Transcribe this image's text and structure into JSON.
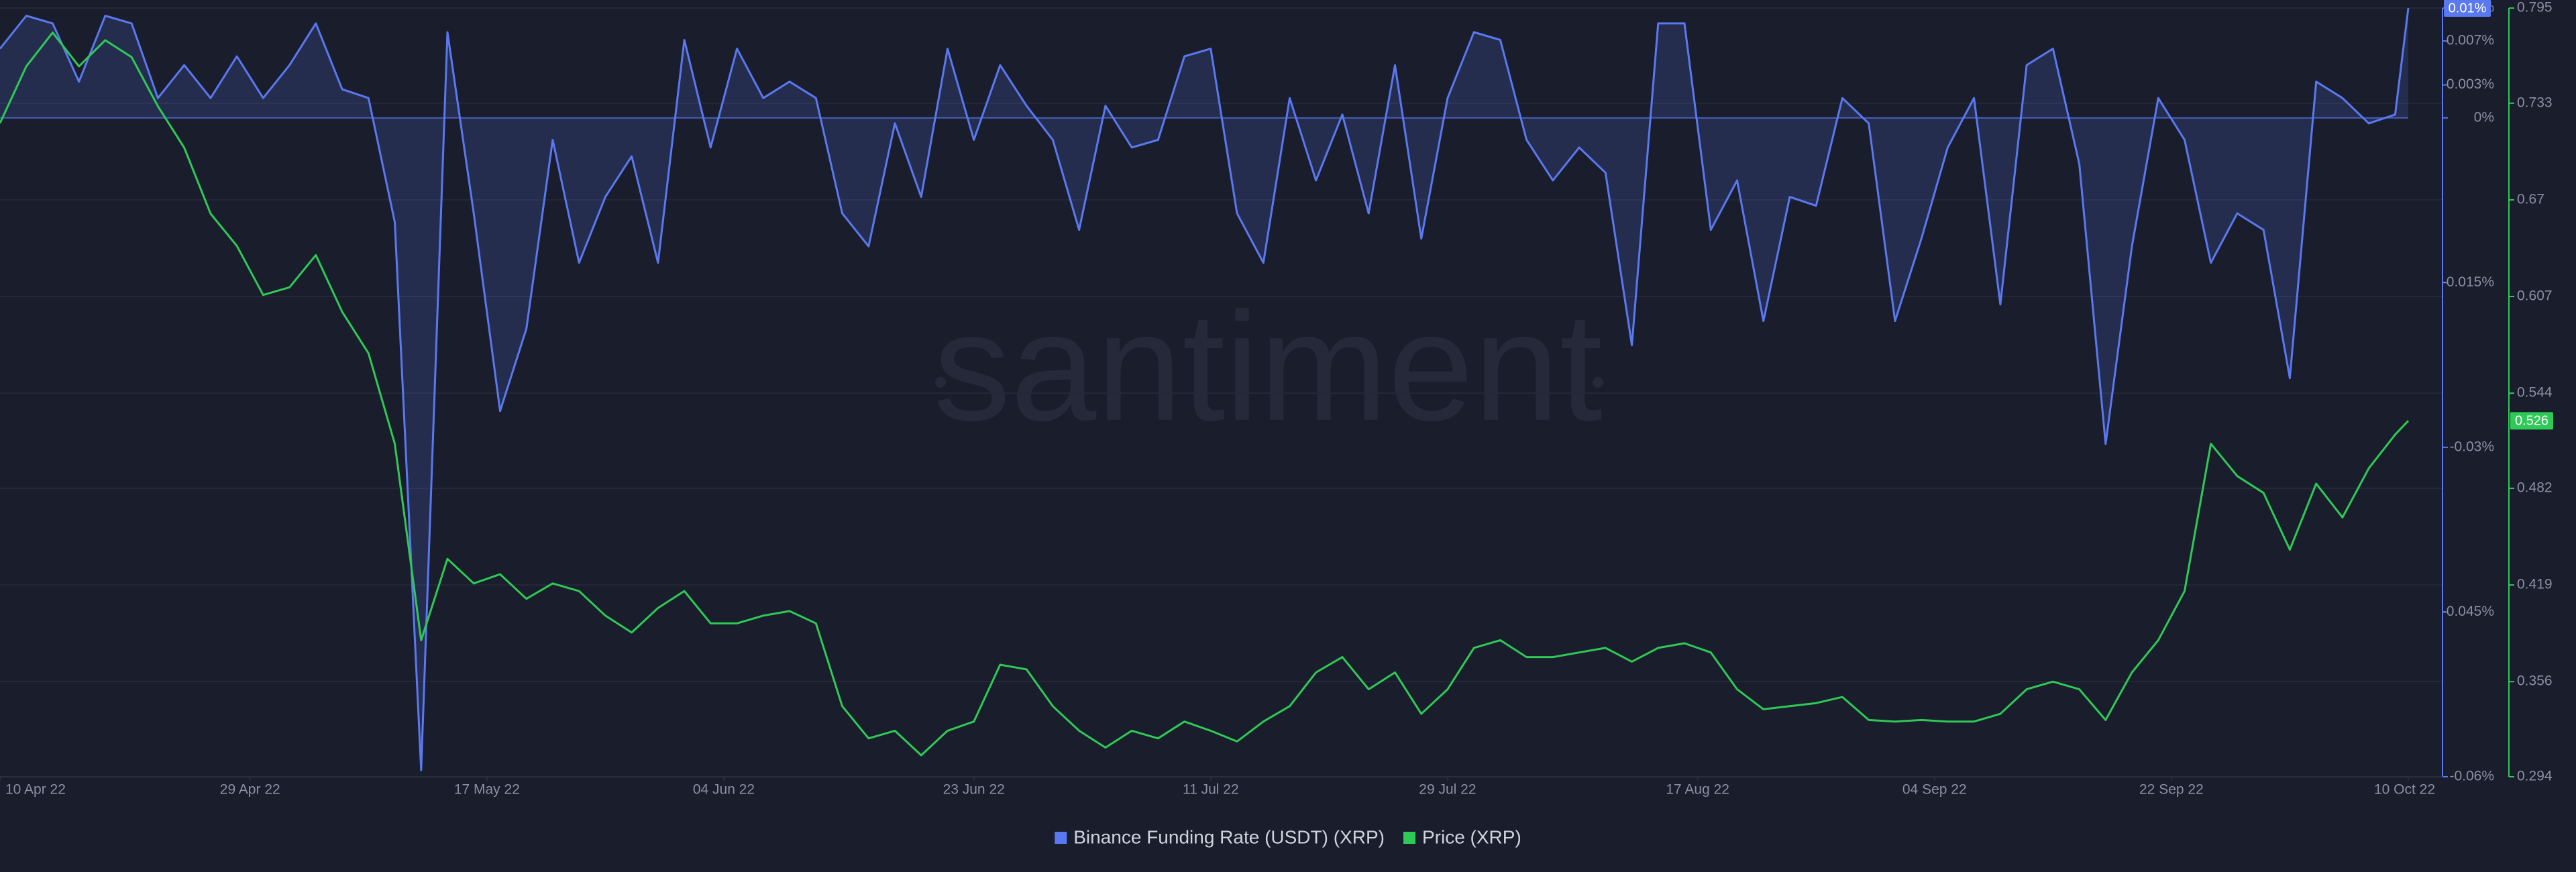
{
  "chart_data": {
    "type": "line",
    "watermark": "santiment",
    "x": [
      "2022-04-10",
      "2022-04-12",
      "2022-04-14",
      "2022-04-16",
      "2022-04-18",
      "2022-04-20",
      "2022-04-22",
      "2022-04-24",
      "2022-04-26",
      "2022-04-28",
      "2022-04-30",
      "2022-05-02",
      "2022-05-04",
      "2022-05-06",
      "2022-05-08",
      "2022-05-10",
      "2022-05-12",
      "2022-05-14",
      "2022-05-16",
      "2022-05-18",
      "2022-05-20",
      "2022-05-22",
      "2022-05-24",
      "2022-05-26",
      "2022-05-28",
      "2022-05-30",
      "2022-06-01",
      "2022-06-03",
      "2022-06-05",
      "2022-06-07",
      "2022-06-09",
      "2022-06-11",
      "2022-06-13",
      "2022-06-15",
      "2022-06-17",
      "2022-06-19",
      "2022-06-21",
      "2022-06-23",
      "2022-06-25",
      "2022-06-27",
      "2022-06-29",
      "2022-07-01",
      "2022-07-03",
      "2022-07-05",
      "2022-07-07",
      "2022-07-09",
      "2022-07-11",
      "2022-07-13",
      "2022-07-15",
      "2022-07-17",
      "2022-07-19",
      "2022-07-21",
      "2022-07-23",
      "2022-07-25",
      "2022-07-27",
      "2022-07-29",
      "2022-07-31",
      "2022-08-02",
      "2022-08-04",
      "2022-08-06",
      "2022-08-08",
      "2022-08-10",
      "2022-08-12",
      "2022-08-14",
      "2022-08-16",
      "2022-08-18",
      "2022-08-20",
      "2022-08-22",
      "2022-08-24",
      "2022-08-26",
      "2022-08-28",
      "2022-08-30",
      "2022-09-01",
      "2022-09-03",
      "2022-09-05",
      "2022-09-07",
      "2022-09-09",
      "2022-09-11",
      "2022-09-13",
      "2022-09-15",
      "2022-09-17",
      "2022-09-19",
      "2022-09-21",
      "2022-09-23",
      "2022-09-25",
      "2022-09-27",
      "2022-09-29",
      "2022-10-01",
      "2022-10-03",
      "2022-10-05",
      "2022-10-07",
      "2022-10-09",
      "2022-10-10"
    ],
    "xlim": [
      "2022-04-10",
      "2022-10-10"
    ],
    "xticks": [
      {
        "value": "2022-04-10",
        "label": "10 Apr 22"
      },
      {
        "value": "2022-04-29",
        "label": "29 Apr 22"
      },
      {
        "value": "2022-05-17",
        "label": "17 May 22"
      },
      {
        "value": "2022-06-04",
        "label": "04 Jun 22"
      },
      {
        "value": "2022-06-23",
        "label": "23 Jun 22"
      },
      {
        "value": "2022-07-11",
        "label": "11 Jul 22"
      },
      {
        "value": "2022-07-29",
        "label": "29 Jul 22"
      },
      {
        "value": "2022-08-17",
        "label": "17 Aug 22"
      },
      {
        "value": "2022-09-04",
        "label": "04 Sep 22"
      },
      {
        "value": "2022-09-22",
        "label": "22 Sep 22"
      },
      {
        "value": "2022-10-10",
        "label": "10 Oct 22"
      }
    ],
    "ylim": [
      -0.06,
      0.01
    ],
    "yticks": [
      {
        "value": 0.01,
        "label": "0.01%"
      },
      {
        "value": 0.007,
        "label": "0.007%"
      },
      {
        "value": 0.003,
        "label": "0.003%"
      },
      {
        "value": 0,
        "label": "0%"
      },
      {
        "value": -0.015,
        "label": "-0.015%"
      },
      {
        "value": -0.03,
        "label": "-0.03%"
      },
      {
        "value": -0.045,
        "label": "-0.045%"
      },
      {
        "value": -0.06,
        "label": "-0.06%"
      }
    ],
    "y2lim": [
      0.294,
      0.795
    ],
    "y2ticks": [
      0.795,
      0.733,
      0.67,
      0.607,
      0.544,
      0.482,
      0.419,
      0.356,
      0.294
    ],
    "grid": true,
    "legend": "bottom",
    "series": [
      {
        "name": "Binance Funding Rate (USDT) (XRP)",
        "color": "#5a78f0",
        "area": true,
        "current_value_label": "0.01%",
        "values": [
          0.0063,
          0.0093,
          0.0086,
          0.0033,
          0.0093,
          0.0086,
          0.0018,
          0.0048,
          0.0018,
          0.0056,
          0.0018,
          0.0048,
          0.0086,
          0.0026,
          0.0018,
          -0.0095,
          -0.0594,
          0.0078,
          -0.0087,
          -0.0267,
          -0.0192,
          -0.002,
          -0.0132,
          -0.0072,
          -0.0035,
          -0.0132,
          0.0071,
          -0.0027,
          0.0063,
          0.0018,
          0.0033,
          0.0018,
          -0.0087,
          -0.0117,
          -0.0005,
          -0.0072,
          0.0063,
          -0.002,
          0.0048,
          0.0011,
          -0.002,
          -0.0102,
          0.0011,
          -0.0027,
          -0.002,
          0.0056,
          0.0063,
          -0.0087,
          -0.0132,
          0.0018,
          -0.0057,
          0.0003,
          -0.0087,
          0.0048,
          -0.011,
          0.0018,
          0.0078,
          0.0071,
          -0.002,
          -0.0057,
          -0.0027,
          -0.005,
          -0.0207,
          0.0086,
          0.0086,
          -0.0102,
          -0.0057,
          -0.0185,
          -0.0072,
          -0.008,
          0.0018,
          -0.0005,
          -0.0185,
          -0.011,
          -0.0027,
          0.0018,
          -0.017,
          0.0048,
          0.0063,
          -0.0042,
          -0.0297,
          -0.0117,
          0.0018,
          -0.002,
          -0.0132,
          -0.0087,
          -0.0102,
          -0.0237,
          0.0033,
          0.0018,
          -0.0005,
          0.0003,
          0.01
        ]
      },
      {
        "name": "Price (XRP)",
        "color": "#2ec956",
        "axis": "y2",
        "current_value": 0.526,
        "values": [
          0.72,
          0.757,
          0.779,
          0.757,
          0.774,
          0.763,
          0.731,
          0.704,
          0.661,
          0.64,
          0.608,
          0.613,
          0.634,
          0.597,
          0.57,
          0.511,
          0.383,
          0.436,
          0.42,
          0.426,
          0.41,
          0.42,
          0.415,
          0.399,
          0.388,
          0.404,
          0.415,
          0.394,
          0.394,
          0.399,
          0.402,
          0.394,
          0.34,
          0.319,
          0.324,
          0.308,
          0.324,
          0.33,
          0.367,
          0.364,
          0.34,
          0.324,
          0.313,
          0.324,
          0.319,
          0.33,
          0.324,
          0.317,
          0.33,
          0.34,
          0.362,
          0.372,
          0.351,
          0.362,
          0.335,
          0.351,
          0.378,
          0.383,
          0.372,
          0.372,
          0.375,
          0.378,
          0.369,
          0.378,
          0.381,
          0.375,
          0.351,
          0.338,
          0.34,
          0.342,
          0.346,
          0.331,
          0.33,
          0.331,
          0.33,
          0.33,
          0.335,
          0.351,
          0.356,
          0.351,
          0.331,
          0.362,
          0.383,
          0.415,
          0.511,
          0.49,
          0.479,
          0.442,
          0.485,
          0.463,
          0.495,
          0.517,
          0.526
        ]
      }
    ]
  }
}
